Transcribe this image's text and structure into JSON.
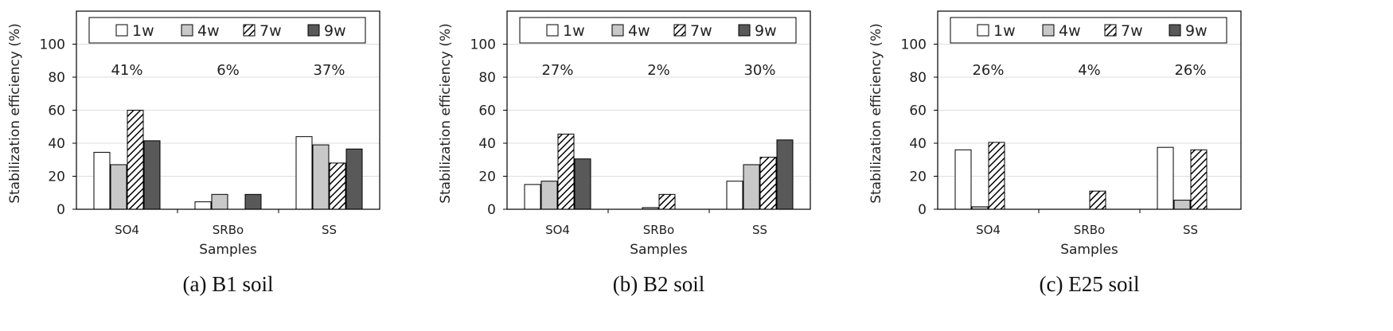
{
  "legend": [
    "1w",
    "4w",
    "7w",
    "9w"
  ],
  "series_fill": {
    "1w": "#ffffff",
    "4w": "#c8c8c8",
    "7w": "hatch",
    "9w": "#595959"
  },
  "chart_data": [
    {
      "type": "bar",
      "caption": "(a)  B1  soil",
      "xlabel": "Samples",
      "ylabel": "Stabilization efficiency (%)",
      "ylim": [
        0,
        120
      ],
      "yticks": [
        0,
        20,
        40,
        60,
        80,
        100
      ],
      "grid": true,
      "legend_position": "top",
      "categories": [
        "SO4",
        "SRBo",
        "SS"
      ],
      "series": [
        {
          "name": "1w",
          "values": [
            34.5,
            4.5,
            44
          ]
        },
        {
          "name": "4w",
          "values": [
            27,
            9,
            39
          ]
        },
        {
          "name": "7w",
          "values": [
            60,
            0,
            28
          ]
        },
        {
          "name": "9w",
          "values": [
            41.5,
            9,
            36.5
          ]
        }
      ],
      "annotations": [
        "41%",
        "6%",
        "37%"
      ]
    },
    {
      "type": "bar",
      "caption": "(b)  B2  soil",
      "xlabel": "Samples",
      "ylabel": "Stabilization efficiency (%)",
      "ylim": [
        0,
        120
      ],
      "yticks": [
        0,
        20,
        40,
        60,
        80,
        100
      ],
      "grid": true,
      "legend_position": "top",
      "categories": [
        "SO4",
        "SRBo",
        "SS"
      ],
      "series": [
        {
          "name": "1w",
          "values": [
            15,
            0,
            17
          ]
        },
        {
          "name": "4w",
          "values": [
            17,
            1,
            27
          ]
        },
        {
          "name": "7w",
          "values": [
            45.5,
            9,
            31.5
          ]
        },
        {
          "name": "9w",
          "values": [
            30.5,
            0,
            42
          ]
        }
      ],
      "annotations": [
        "27%",
        "2%",
        "30%"
      ]
    },
    {
      "type": "bar",
      "caption": "(c)  E25  soil",
      "xlabel": "Samples",
      "ylabel": "Stabilization efficiency (%)",
      "ylim": [
        0,
        120
      ],
      "yticks": [
        0,
        20,
        40,
        60,
        80,
        100
      ],
      "grid": true,
      "legend_position": "top",
      "categories": [
        "SO4",
        "SRBo",
        "SS"
      ],
      "series": [
        {
          "name": "1w",
          "values": [
            36,
            0,
            37.5
          ]
        },
        {
          "name": "4w",
          "values": [
            1.5,
            0,
            5.5
          ]
        },
        {
          "name": "7w",
          "values": [
            40.5,
            11,
            36
          ]
        },
        {
          "name": "9w",
          "values": [
            0,
            0,
            0
          ]
        }
      ],
      "annotations": [
        "26%",
        "4%",
        "26%"
      ]
    }
  ]
}
